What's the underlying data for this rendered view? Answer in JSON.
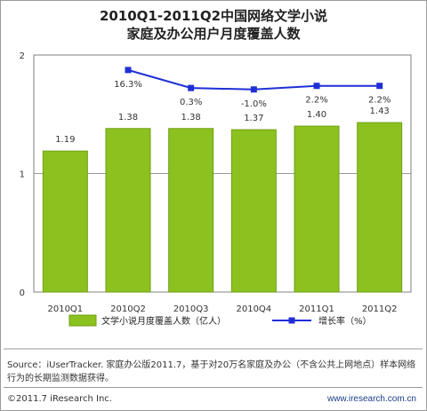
{
  "chart_data": {
    "type": "bar",
    "title_line1": "2010Q1-2011Q2中国网络文学小说",
    "title_line2": "家庭及办公用户月度覆盖人数",
    "categories": [
      "2010Q1",
      "2010Q2",
      "2010Q3",
      "2010Q4",
      "2011Q1",
      "2011Q2"
    ],
    "bar_series": {
      "name": "文学小说月度覆盖人数（亿人）",
      "values": [
        1.19,
        1.38,
        1.38,
        1.37,
        1.4,
        1.43
      ],
      "labels": [
        "1.19",
        "1.38",
        "1.38",
        "1.37",
        "1.40",
        "1.43"
      ],
      "color": "#8cc21f"
    },
    "line_series": {
      "name": "增长率（%）",
      "values": [
        null,
        16.3,
        0.3,
        -1.0,
        2.2,
        2.2
      ],
      "labels": [
        "",
        "16.3%",
        "0.3%",
        "-1.0%",
        "2.2%",
        "2.2%"
      ],
      "color": "#1f2fd6"
    },
    "ylim": [
      0,
      2
    ],
    "yticks": [
      "0",
      "1",
      "2"
    ],
    "grid": true,
    "legend": "bottom"
  },
  "source": "Source：iUserTracker. 家庭办公版2011.7，基于对20万名家庭及办公（不含公共上网地点）样本网络行为的长期监测数据获得。",
  "footer": {
    "copyright": "©2011.7 iResearch Inc.",
    "website": "www.iresearch.com.cn"
  }
}
